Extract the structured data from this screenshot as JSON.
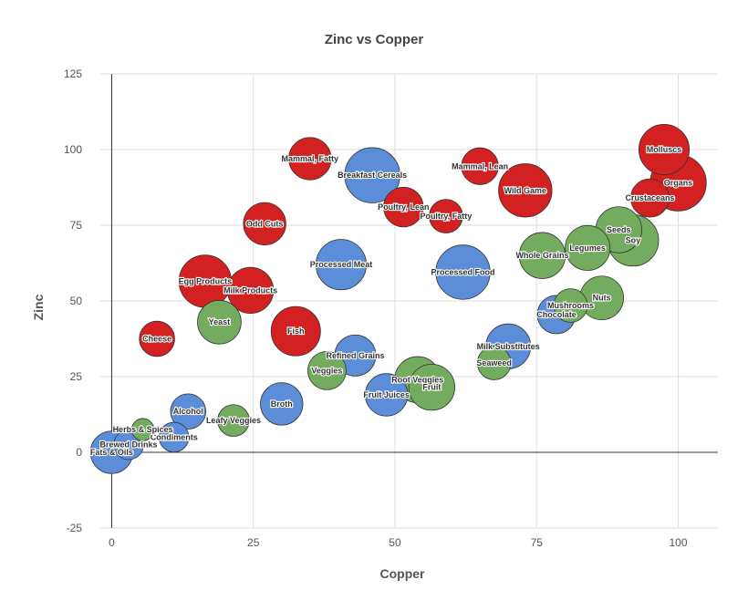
{
  "chart_data": {
    "type": "scatter",
    "title": "Zinc vs Copper",
    "xlabel": "Copper",
    "ylabel": "Zinc",
    "xlim": [
      -2,
      107
    ],
    "ylim": [
      -25,
      125
    ],
    "x_ticks": [
      "0",
      "25",
      "50",
      "75",
      "100"
    ],
    "y_ticks": [
      "-25",
      "0",
      "25",
      "50",
      "75",
      "100",
      "125"
    ],
    "x_tick_values": [
      0,
      25,
      50,
      75,
      100
    ],
    "y_tick_values": [
      -25,
      0,
      25,
      50,
      75,
      100,
      125
    ],
    "grid": true,
    "colors": {
      "red": "#d32020",
      "blue": "#5b8dd9",
      "green": "#73ac5e"
    },
    "points": [
      {
        "label": "Molluscs",
        "x": 97.5,
        "y": 100,
        "size": 2.0,
        "group": "red"
      },
      {
        "label": "Organs",
        "x": 100,
        "y": 89,
        "size": 2.6,
        "group": "red"
      },
      {
        "label": "Crustaceans",
        "x": 95,
        "y": 84,
        "size": 1.0,
        "group": "red"
      },
      {
        "label": "Wild Game",
        "x": 73,
        "y": 86.5,
        "size": 2.3,
        "group": "red"
      },
      {
        "label": "Mammal, Lean",
        "x": 65,
        "y": 94.5,
        "size": 0.9,
        "group": "red"
      },
      {
        "label": "Mammal, Fatty",
        "x": 35,
        "y": 97,
        "size": 1.3,
        "group": "red"
      },
      {
        "label": "Poultry, Lean",
        "x": 51.5,
        "y": 81,
        "size": 1.1,
        "group": "red"
      },
      {
        "label": "Poultry, Fatty",
        "x": 59,
        "y": 78,
        "size": 0.7,
        "group": "red"
      },
      {
        "label": "Odd Cuts",
        "x": 27,
        "y": 75.5,
        "size": 1.3,
        "group": "red"
      },
      {
        "label": "Egg Products",
        "x": 16.5,
        "y": 56.5,
        "size": 2.2,
        "group": "red"
      },
      {
        "label": "Milk Products",
        "x": 24.5,
        "y": 53.5,
        "size": 1.6,
        "group": "red"
      },
      {
        "label": "Fish",
        "x": 32.5,
        "y": 40,
        "size": 1.9,
        "group": "red"
      },
      {
        "label": "Cheese",
        "x": 8,
        "y": 37.5,
        "size": 0.8,
        "group": "red"
      },
      {
        "label": "Breakfast Cereals",
        "x": 46,
        "y": 91.5,
        "size": 2.5,
        "group": "blue"
      },
      {
        "label": "Processed Meat",
        "x": 40.5,
        "y": 62,
        "size": 2.0,
        "group": "blue"
      },
      {
        "label": "Processed Food",
        "x": 62,
        "y": 59.5,
        "size": 2.4,
        "group": "blue"
      },
      {
        "label": "Milk Substitutes",
        "x": 70,
        "y": 35,
        "size": 1.5,
        "group": "blue"
      },
      {
        "label": "Chocolate",
        "x": 78.5,
        "y": 45.5,
        "size": 1.0,
        "group": "blue"
      },
      {
        "label": "Refined Grains",
        "x": 43,
        "y": 32,
        "size": 1.2,
        "group": "blue"
      },
      {
        "label": "Fruit Juices",
        "x": 48.5,
        "y": 19,
        "size": 1.3,
        "group": "blue"
      },
      {
        "label": "Broth",
        "x": 30,
        "y": 16,
        "size": 1.3,
        "group": "blue"
      },
      {
        "label": "Alcohol",
        "x": 13.5,
        "y": 13.5,
        "size": 0.8,
        "group": "blue"
      },
      {
        "label": "Condiments",
        "x": 11,
        "y": 5,
        "size": 0.5,
        "group": "blue"
      },
      {
        "label": "Brewed Drinks",
        "x": 3,
        "y": 2.5,
        "size": 0.5,
        "group": "blue"
      },
      {
        "label": "Fats & Oils",
        "x": 0,
        "y": 0,
        "size": 1.3,
        "group": "blue"
      },
      {
        "label": "Seeds",
        "x": 89.5,
        "y": 73.5,
        "size": 1.6,
        "group": "green"
      },
      {
        "label": "Soy",
        "x": 92,
        "y": 70,
        "size": 2.1,
        "group": "green"
      },
      {
        "label": "Legumes",
        "x": 84,
        "y": 67.5,
        "size": 1.5,
        "group": "green"
      },
      {
        "label": "Whole Grains",
        "x": 76,
        "y": 65,
        "size": 1.6,
        "group": "green"
      },
      {
        "label": "Nuts",
        "x": 86.5,
        "y": 51,
        "size": 1.4,
        "group": "green"
      },
      {
        "label": "Mushrooms",
        "x": 81,
        "y": 48.5,
        "size": 0.7,
        "group": "green"
      },
      {
        "label": "Yeast",
        "x": 19,
        "y": 43,
        "size": 1.4,
        "group": "green"
      },
      {
        "label": "Seaweed",
        "x": 67.5,
        "y": 29.5,
        "size": 0.7,
        "group": "green"
      },
      {
        "label": "Veggies",
        "x": 38,
        "y": 27,
        "size": 1.0,
        "group": "green"
      },
      {
        "label": "Root Veggies",
        "x": 54,
        "y": 24,
        "size": 1.6,
        "group": "green"
      },
      {
        "label": "Fruit",
        "x": 56.5,
        "y": 21.5,
        "size": 1.6,
        "group": "green"
      },
      {
        "label": "Leafy Veggies",
        "x": 21.5,
        "y": 10.5,
        "size": 0.6,
        "group": "green"
      },
      {
        "label": "Herbs & Spices",
        "x": 5.5,
        "y": 7.5,
        "size": 0.2,
        "group": "green"
      }
    ]
  }
}
